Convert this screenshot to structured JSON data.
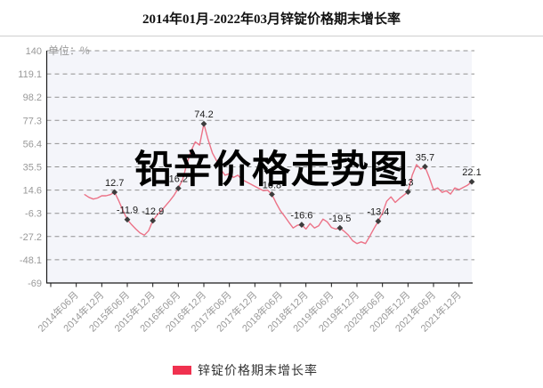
{
  "page": {
    "title": "2014年01月-2022年03月锌锭价格期末增长率",
    "watermark": "铅辛价格走势图"
  },
  "legend": {
    "label": "锌锭价格期末增长率",
    "swatch_color": "#f0314f"
  },
  "chart_data": {
    "type": "line",
    "title": "2014年01月-2022年03月锌锭价格期末增长率",
    "unit_label": "单位：%",
    "ylim": [
      -69,
      140
    ],
    "y_ticks": [
      140,
      119.1,
      98.2,
      77.3,
      56.4,
      35.5,
      14.6,
      -6.3,
      -27.2,
      -48.1,
      -69
    ],
    "x_tick_labels": [
      "2014年06月",
      "2014年12月",
      "2015年06月",
      "2015年12月",
      "2016年06月",
      "2016年12月",
      "2017年06月",
      "2017年12月",
      "2018年06月",
      "2018年12月",
      "2019年06月",
      "2019年12月",
      "2020年06月",
      "2020年12月",
      "2021年06月",
      "2021年12月"
    ],
    "x_tick_month_offsets": [
      6,
      12,
      18,
      24,
      30,
      36,
      42,
      48,
      54,
      60,
      66,
      72,
      78,
      84,
      90,
      96
    ],
    "axis_total_months": 99,
    "series_month_offset": 8,
    "grid": true,
    "legend_position": "bottom",
    "series": [
      {
        "name": "锌锭价格期末增长率",
        "start_month": "2014年08月",
        "end_month": "2022年03月",
        "values": [
          10.5,
          8,
          6.5,
          7.5,
          9.5,
          9.5,
          10.5,
          12.7,
          5,
          -4,
          -11.9,
          -16.5,
          -20.5,
          -24,
          -26,
          -22,
          -12.9,
          -8,
          -4,
          0.5,
          5,
          10,
          16.2,
          24,
          38,
          50,
          58,
          55,
          74.2,
          60,
          48,
          41,
          33,
          28,
          29.5,
          26,
          28,
          24,
          22,
          20,
          18,
          16,
          14,
          14.5,
          10.8,
          3,
          -4,
          -9,
          -14.5,
          -19.5,
          -17,
          -16.6,
          -20.5,
          -15.5,
          -19.5,
          -17.5,
          -11.5,
          -14,
          -19,
          -20.5,
          -19.5,
          -22.5,
          -26,
          -31,
          -33.5,
          -32,
          -33.5,
          -27,
          -20,
          -13.4,
          -6,
          4.5,
          8.5,
          3.5,
          7,
          10,
          13,
          28,
          37.5,
          33.5,
          35.7,
          26,
          15,
          16.5,
          12.5,
          14,
          11,
          16.5,
          15,
          17,
          19,
          22.1
        ]
      }
    ],
    "labeled_points": [
      {
        "i": 7,
        "label": "12.7"
      },
      {
        "i": 10,
        "label": "-11.9"
      },
      {
        "i": 16,
        "label": "-12.9"
      },
      {
        "i": 22,
        "label": "16.2"
      },
      {
        "i": 28,
        "label": "74.2"
      },
      {
        "i": 44,
        "label": "10.8"
      },
      {
        "i": 51,
        "label": "-16.6"
      },
      {
        "i": 60,
        "label": "-19.5"
      },
      {
        "i": 69,
        "label": "-13.4"
      },
      {
        "i": 76,
        "label": "13"
      },
      {
        "i": 80,
        "label": "35.7"
      },
      {
        "i": 91,
        "label": "22.1"
      }
    ],
    "colors": {
      "line": "#ec7287",
      "marker": "#3c3c3c",
      "grid": "#919191",
      "axis": "#1a1a1a",
      "plot_bg": "#f4f5fa",
      "tick_text": "#999999",
      "data_label_text": "#1b1b1b"
    }
  }
}
